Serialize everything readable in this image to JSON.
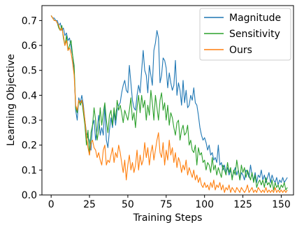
{
  "chart_data": {
    "type": "line",
    "title": "",
    "xlabel": "Training Steps",
    "ylabel": "Learning Objective",
    "xlim": [
      -6,
      158
    ],
    "ylim": [
      0.0,
      0.76
    ],
    "xticks": [
      0,
      25,
      50,
      75,
      100,
      125,
      150
    ],
    "yticks": [
      0.0,
      0.1,
      0.2,
      0.3,
      0.4,
      0.5,
      0.6,
      0.7
    ],
    "grid": false,
    "legend_position": "top-right",
    "series": [
      {
        "name": "Magnitude",
        "color": "#1f77b4",
        "x": [
          0,
          1,
          2,
          3,
          4,
          5,
          6,
          7,
          8,
          9,
          10,
          11,
          12,
          13,
          14,
          15,
          16,
          17,
          18,
          19,
          20,
          21,
          22,
          23,
          24,
          25,
          26,
          27,
          28,
          29,
          30,
          31,
          32,
          33,
          34,
          35,
          36,
          37,
          38,
          39,
          40,
          41,
          42,
          43,
          44,
          45,
          46,
          47,
          48,
          49,
          50,
          51,
          52,
          53,
          54,
          55,
          56,
          57,
          58,
          59,
          60,
          61,
          62,
          63,
          64,
          65,
          66,
          67,
          68,
          69,
          70,
          71,
          72,
          73,
          74,
          75,
          76,
          77,
          78,
          79,
          80,
          81,
          82,
          83,
          84,
          85,
          86,
          87,
          88,
          89,
          90,
          91,
          92,
          93,
          94,
          95,
          96,
          97,
          98,
          99,
          100,
          101,
          102,
          103,
          104,
          105,
          106,
          107,
          108,
          109,
          110,
          111,
          112,
          113,
          114,
          115,
          116,
          117,
          118,
          119,
          120,
          121,
          122,
          123,
          124,
          125,
          126,
          127,
          128,
          129,
          130,
          131,
          132,
          133,
          134,
          135,
          136,
          137,
          138,
          139,
          140,
          141,
          142,
          143,
          144,
          145,
          146,
          147,
          148,
          149,
          150,
          151,
          152,
          153,
          154
        ],
        "y": [
          0.72,
          0.71,
          0.71,
          0.7,
          0.7,
          0.68,
          0.69,
          0.66,
          0.67,
          0.64,
          0.65,
          0.62,
          0.63,
          0.59,
          0.56,
          0.5,
          0.34,
          0.3,
          0.39,
          0.37,
          0.4,
          0.36,
          0.3,
          0.25,
          0.23,
          0.22,
          0.18,
          0.28,
          0.3,
          0.22,
          0.26,
          0.32,
          0.24,
          0.27,
          0.24,
          0.36,
          0.22,
          0.19,
          0.26,
          0.31,
          0.27,
          0.33,
          0.28,
          0.34,
          0.36,
          0.37,
          0.41,
          0.44,
          0.46,
          0.42,
          0.41,
          0.52,
          0.45,
          0.38,
          0.35,
          0.34,
          0.4,
          0.44,
          0.41,
          0.5,
          0.58,
          0.5,
          0.48,
          0.41,
          0.52,
          0.48,
          0.44,
          0.58,
          0.61,
          0.66,
          0.63,
          0.45,
          0.48,
          0.55,
          0.54,
          0.51,
          0.43,
          0.49,
          0.45,
          0.42,
          0.44,
          0.54,
          0.4,
          0.45,
          0.42,
          0.36,
          0.46,
          0.37,
          0.42,
          0.35,
          0.36,
          0.4,
          0.38,
          0.43,
          0.37,
          0.36,
          0.32,
          0.27,
          0.24,
          0.22,
          0.23,
          0.21,
          0.18,
          0.2,
          0.16,
          0.17,
          0.14,
          0.15,
          0.13,
          0.2,
          0.12,
          0.13,
          0.1,
          0.12,
          0.09,
          0.11,
          0.08,
          0.1,
          0.07,
          0.09,
          0.11,
          0.08,
          0.1,
          0.06,
          0.09,
          0.08,
          0.06,
          0.1,
          0.09,
          0.07,
          0.12,
          0.08,
          0.06,
          0.09,
          0.05,
          0.08,
          0.07,
          0.1,
          0.06,
          0.08,
          0.05,
          0.07,
          0.09,
          0.05,
          0.08,
          0.06,
          0.05,
          0.07,
          0.04,
          0.06,
          0.05,
          0.07,
          0.05,
          0.06,
          0.07
        ]
      },
      {
        "name": "Sensitivity",
        "color": "#2ca02c",
        "x": [
          0,
          1,
          2,
          3,
          4,
          5,
          6,
          7,
          8,
          9,
          10,
          11,
          12,
          13,
          14,
          15,
          16,
          17,
          18,
          19,
          20,
          21,
          22,
          23,
          24,
          25,
          26,
          27,
          28,
          29,
          30,
          31,
          32,
          33,
          34,
          35,
          36,
          37,
          38,
          39,
          40,
          41,
          42,
          43,
          44,
          45,
          46,
          47,
          48,
          49,
          50,
          51,
          52,
          53,
          54,
          55,
          56,
          57,
          58,
          59,
          60,
          61,
          62,
          63,
          64,
          65,
          66,
          67,
          68,
          69,
          70,
          71,
          72,
          73,
          74,
          75,
          76,
          77,
          78,
          79,
          80,
          81,
          82,
          83,
          84,
          85,
          86,
          87,
          88,
          89,
          90,
          91,
          92,
          93,
          94,
          95,
          96,
          97,
          98,
          99,
          100,
          101,
          102,
          103,
          104,
          105,
          106,
          107,
          108,
          109,
          110,
          111,
          112,
          113,
          114,
          115,
          116,
          117,
          118,
          119,
          120,
          121,
          122,
          123,
          124,
          125,
          126,
          127,
          128,
          129,
          130,
          131,
          132,
          133,
          134,
          135,
          136,
          137,
          138,
          139,
          140,
          141,
          142,
          143,
          144,
          145,
          146,
          147,
          148,
          149,
          150,
          151,
          152,
          153,
          154
        ],
        "y": [
          0.72,
          0.71,
          0.7,
          0.7,
          0.69,
          0.67,
          0.66,
          0.68,
          0.63,
          0.6,
          0.64,
          0.58,
          0.6,
          0.62,
          0.56,
          0.52,
          0.35,
          0.33,
          0.38,
          0.36,
          0.38,
          0.33,
          0.28,
          0.2,
          0.26,
          0.16,
          0.25,
          0.28,
          0.35,
          0.3,
          0.22,
          0.26,
          0.35,
          0.28,
          0.33,
          0.37,
          0.3,
          0.25,
          0.32,
          0.34,
          0.28,
          0.35,
          0.3,
          0.38,
          0.34,
          0.36,
          0.33,
          0.29,
          0.34,
          0.32,
          0.3,
          0.34,
          0.39,
          0.3,
          0.33,
          0.27,
          0.35,
          0.4,
          0.33,
          0.4,
          0.35,
          0.38,
          0.3,
          0.36,
          0.32,
          0.42,
          0.37,
          0.3,
          0.4,
          0.35,
          0.3,
          0.38,
          0.41,
          0.34,
          0.37,
          0.3,
          0.36,
          0.28,
          0.33,
          0.31,
          0.27,
          0.24,
          0.29,
          0.3,
          0.22,
          0.26,
          0.28,
          0.24,
          0.25,
          0.28,
          0.2,
          0.22,
          0.18,
          0.17,
          0.2,
          0.12,
          0.19,
          0.16,
          0.17,
          0.13,
          0.14,
          0.1,
          0.13,
          0.12,
          0.09,
          0.15,
          0.1,
          0.12,
          0.08,
          0.11,
          0.09,
          0.07,
          0.12,
          0.1,
          0.08,
          0.13,
          0.09,
          0.11,
          0.06,
          0.1,
          0.08,
          0.14,
          0.1,
          0.06,
          0.12,
          0.09,
          0.11,
          0.07,
          0.1,
          0.08,
          0.06,
          0.09,
          0.05,
          0.08,
          0.03,
          0.05,
          0.06,
          0.04,
          0.06,
          0.03,
          0.07,
          0.04,
          0.05,
          0.03,
          0.06,
          0.02,
          0.05,
          0.03,
          0.04,
          0.02,
          0.04,
          0.03,
          0.05,
          0.02,
          0.03
        ]
      },
      {
        "name": "Ours",
        "color": "#ff7f0e",
        "x": [
          0,
          1,
          2,
          3,
          4,
          5,
          6,
          7,
          8,
          9,
          10,
          11,
          12,
          13,
          14,
          15,
          16,
          17,
          18,
          19,
          20,
          21,
          22,
          23,
          24,
          25,
          26,
          27,
          28,
          29,
          30,
          31,
          32,
          33,
          34,
          35,
          36,
          37,
          38,
          39,
          40,
          41,
          42,
          43,
          44,
          45,
          46,
          47,
          48,
          49,
          50,
          51,
          52,
          53,
          54,
          55,
          56,
          57,
          58,
          59,
          60,
          61,
          62,
          63,
          64,
          65,
          66,
          67,
          68,
          69,
          70,
          71,
          72,
          73,
          74,
          75,
          76,
          77,
          78,
          79,
          80,
          81,
          82,
          83,
          84,
          85,
          86,
          87,
          88,
          89,
          90,
          91,
          92,
          93,
          94,
          95,
          96,
          97,
          98,
          99,
          100,
          101,
          102,
          103,
          104,
          105,
          106,
          107,
          108,
          109,
          110,
          111,
          112,
          113,
          114,
          115,
          116,
          117,
          118,
          119,
          120,
          121,
          122,
          123,
          124,
          125,
          126,
          127,
          128,
          129,
          130,
          131,
          132,
          133,
          134,
          135,
          136,
          137,
          138,
          139,
          140,
          141,
          142,
          143,
          144,
          145,
          146,
          147,
          148,
          149,
          150,
          151,
          152,
          153,
          154
        ],
        "y": [
          0.72,
          0.71,
          0.7,
          0.7,
          0.69,
          0.68,
          0.66,
          0.67,
          0.64,
          0.6,
          0.62,
          0.58,
          0.59,
          0.57,
          0.53,
          0.48,
          0.36,
          0.34,
          0.38,
          0.37,
          0.38,
          0.35,
          0.3,
          0.24,
          0.19,
          0.16,
          0.21,
          0.22,
          0.19,
          0.18,
          0.15,
          0.17,
          0.14,
          0.12,
          0.18,
          0.2,
          0.12,
          0.14,
          0.13,
          0.16,
          0.19,
          0.13,
          0.17,
          0.15,
          0.2,
          0.17,
          0.13,
          0.09,
          0.14,
          0.06,
          0.12,
          0.16,
          0.1,
          0.13,
          0.09,
          0.12,
          0.18,
          0.1,
          0.16,
          0.12,
          0.14,
          0.21,
          0.15,
          0.19,
          0.12,
          0.17,
          0.2,
          0.14,
          0.18,
          0.22,
          0.25,
          0.17,
          0.15,
          0.21,
          0.12,
          0.18,
          0.14,
          0.22,
          0.16,
          0.19,
          0.13,
          0.17,
          0.11,
          0.15,
          0.13,
          0.09,
          0.12,
          0.1,
          0.14,
          0.08,
          0.11,
          0.09,
          0.07,
          0.1,
          0.06,
          0.08,
          0.05,
          0.07,
          0.04,
          0.03,
          0.05,
          0.03,
          0.04,
          0.02,
          0.05,
          0.03,
          0.06,
          0.02,
          0.04,
          0.03,
          0.05,
          0.02,
          0.04,
          0.01,
          0.03,
          0.02,
          0.04,
          0.01,
          0.03,
          0.02,
          0.01,
          0.03,
          0.02,
          0.01,
          0.03,
          0.02,
          0.01,
          0.02,
          0.04,
          0.01,
          0.02,
          0.03,
          0.01,
          0.02,
          0.01,
          0.03,
          0.02,
          0.01,
          0.02,
          0.01,
          0.03,
          0.01,
          0.02,
          0.01,
          0.02,
          0.01,
          0.03,
          0.01,
          0.02,
          0.01,
          0.02,
          0.01,
          0.02,
          0.01,
          0.02
        ]
      }
    ]
  }
}
